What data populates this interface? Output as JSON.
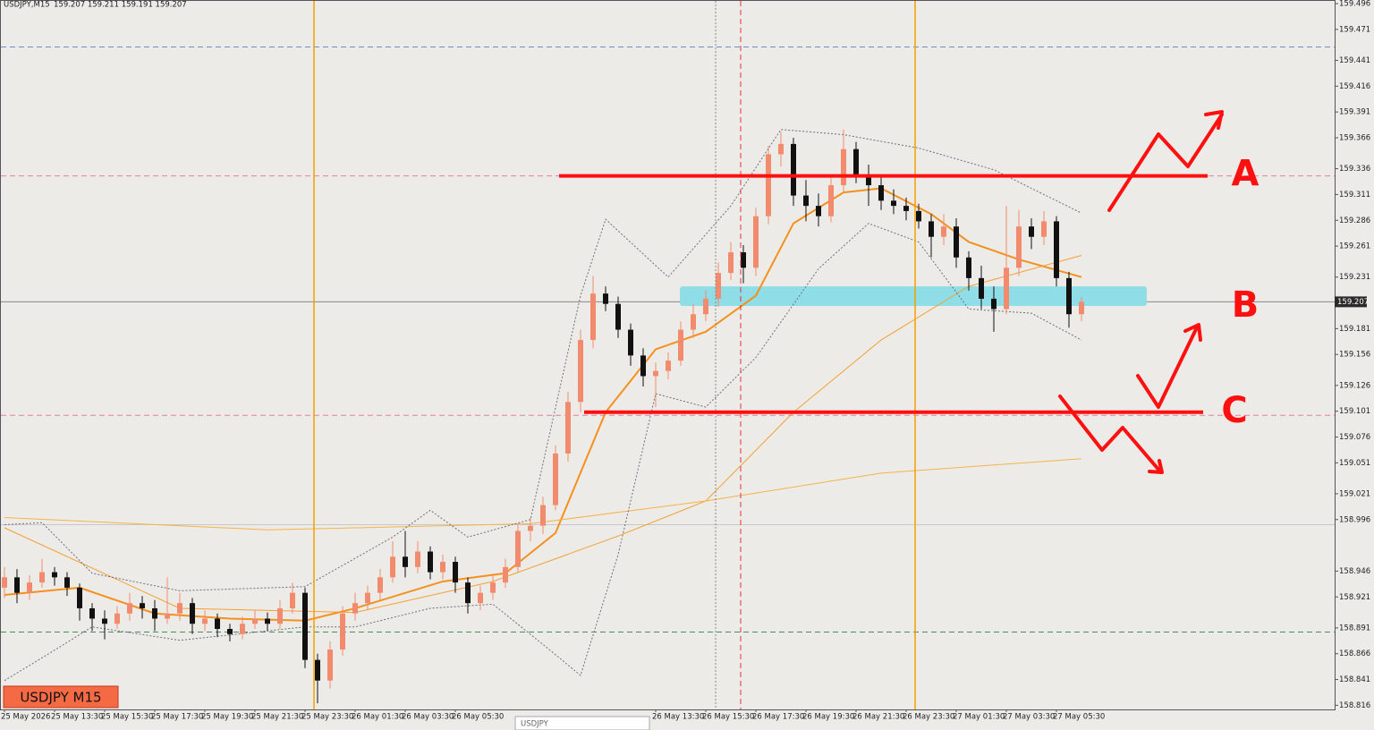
{
  "chart_data": {
    "type": "candlestick",
    "title": "USDJPY,M15",
    "header_values": "159.207 159.211 159.191 159.207",
    "symbol_label": "USDJPY M15",
    "tab_label": "USDJPY",
    "last_price": 159.207,
    "up_color": "#f28b6e",
    "down_color": "#111111",
    "grid": false,
    "ylim": [
      158.812,
      159.4995
    ],
    "yticks": [
      159.496,
      159.471,
      159.441,
      159.416,
      159.391,
      159.366,
      159.336,
      159.311,
      159.286,
      159.261,
      159.231,
      159.181,
      159.156,
      159.126,
      159.101,
      159.076,
      159.051,
      159.021,
      158.996,
      158.946,
      158.921,
      158.891,
      158.866,
      158.841,
      158.816
    ],
    "categories": [
      "25 May 2026",
      null,
      null,
      null,
      "25 May 13:30",
      null,
      null,
      null,
      "25 May 15:30",
      null,
      null,
      null,
      "25 May 17:30",
      null,
      null,
      null,
      "25 May 19:30",
      null,
      null,
      null,
      "25 May 21:30",
      null,
      null,
      null,
      "25 May 23:30",
      null,
      null,
      null,
      "26 May 01:30",
      null,
      null,
      null,
      "26 May 03:30",
      null,
      null,
      null,
      "26 May 05:30",
      null,
      null,
      null,
      null,
      null,
      null,
      null,
      null,
      null,
      null,
      null,
      null,
      null,
      null,
      null,
      "26 May 13:30",
      null,
      null,
      null,
      "26 May 15:30",
      null,
      null,
      null,
      "26 May 17:30",
      null,
      null,
      null,
      "26 May 19:30",
      null,
      null,
      null,
      "26 May 21:30",
      null,
      null,
      null,
      "26 May 23:30",
      null,
      null,
      null,
      "27 May 01:30",
      null,
      null,
      null,
      "27 May 03:30",
      null,
      null,
      null,
      "27 May 05:30",
      null,
      null
    ],
    "open": [
      158.93,
      158.94,
      158.925,
      158.935,
      158.945,
      158.94,
      158.93,
      158.91,
      158.9,
      158.895,
      158.905,
      158.915,
      158.91,
      158.9,
      158.905,
      158.915,
      158.895,
      158.9,
      158.89,
      158.885,
      158.895,
      158.9,
      158.895,
      158.91,
      158.925,
      158.86,
      158.84,
      158.87,
      158.905,
      158.915,
      158.925,
      158.94,
      158.96,
      158.95,
      158.965,
      158.945,
      158.955,
      158.935,
      158.915,
      158.925,
      158.935,
      158.95,
      158.985,
      158.99,
      159.01,
      159.06,
      159.11,
      159.17,
      159.215,
      159.205,
      159.18,
      159.155,
      159.135,
      159.14,
      159.15,
      159.18,
      159.195,
      159.21,
      159.235,
      159.255,
      159.24,
      159.29,
      159.35,
      159.36,
      159.31,
      159.3,
      159.29,
      159.32,
      159.355,
      159.33,
      159.32,
      159.305,
      159.3,
      159.295,
      159.285,
      159.27,
      159.28,
      159.25,
      159.23,
      159.21,
      159.2,
      159.24,
      159.28,
      159.27,
      159.285,
      159.23,
      159.195
    ],
    "high": [
      158.95,
      158.948,
      158.942,
      158.958,
      158.95,
      158.945,
      158.934,
      158.915,
      158.908,
      158.912,
      158.925,
      158.922,
      158.918,
      158.94,
      158.925,
      158.92,
      158.908,
      158.905,
      158.895,
      158.902,
      158.908,
      158.906,
      158.918,
      158.935,
      158.93,
      158.866,
      158.878,
      158.912,
      158.925,
      158.932,
      158.948,
      158.975,
      158.985,
      158.975,
      158.97,
      158.962,
      158.96,
      158.94,
      158.932,
      158.942,
      158.958,
      158.992,
      158.998,
      159.018,
      159.068,
      159.12,
      159.18,
      159.232,
      159.222,
      159.212,
      159.186,
      159.162,
      159.148,
      159.158,
      159.188,
      159.205,
      159.218,
      159.245,
      159.265,
      159.262,
      159.298,
      159.358,
      159.372,
      159.366,
      159.325,
      159.312,
      159.33,
      159.374,
      159.362,
      159.34,
      159.328,
      159.316,
      159.308,
      159.302,
      159.292,
      159.292,
      159.288,
      159.256,
      159.242,
      159.222,
      159.3,
      159.296,
      159.288,
      159.295,
      159.29,
      159.236,
      159.212
    ],
    "low": [
      158.92,
      158.915,
      158.918,
      158.93,
      158.932,
      158.922,
      158.898,
      158.888,
      158.88,
      158.89,
      158.898,
      158.9,
      158.888,
      158.895,
      158.898,
      158.885,
      158.888,
      158.882,
      158.878,
      158.88,
      158.89,
      158.888,
      158.89,
      158.905,
      158.852,
      158.818,
      158.832,
      158.864,
      158.898,
      158.908,
      158.918,
      158.935,
      158.94,
      158.944,
      158.938,
      158.938,
      158.925,
      158.905,
      158.908,
      158.918,
      158.93,
      158.945,
      158.975,
      158.982,
      159.005,
      159.052,
      159.1,
      159.162,
      159.198,
      159.172,
      159.145,
      159.125,
      159.105,
      159.132,
      159.145,
      159.172,
      159.188,
      159.202,
      159.228,
      159.225,
      159.232,
      159.282,
      159.338,
      159.3,
      159.285,
      159.28,
      159.284,
      159.314,
      159.322,
      159.3,
      159.296,
      159.292,
      159.286,
      159.278,
      159.25,
      159.262,
      159.24,
      159.218,
      159.2,
      159.178,
      159.195,
      159.232,
      159.258,
      159.262,
      159.222,
      159.182,
      159.188
    ],
    "close": [
      158.94,
      158.925,
      158.935,
      158.945,
      158.94,
      158.93,
      158.91,
      158.9,
      158.895,
      158.905,
      158.915,
      158.91,
      158.9,
      158.905,
      158.915,
      158.895,
      158.9,
      158.89,
      158.885,
      158.895,
      158.9,
      158.895,
      158.91,
      158.925,
      158.86,
      158.84,
      158.87,
      158.905,
      158.915,
      158.925,
      158.94,
      158.96,
      158.95,
      158.965,
      158.945,
      158.955,
      158.935,
      158.915,
      158.925,
      158.935,
      158.95,
      158.985,
      158.99,
      159.01,
      159.06,
      159.11,
      159.17,
      159.215,
      159.205,
      159.18,
      159.155,
      159.135,
      159.14,
      159.15,
      159.18,
      159.195,
      159.21,
      159.235,
      159.255,
      159.24,
      159.29,
      159.35,
      159.36,
      159.31,
      159.3,
      159.29,
      159.32,
      159.355,
      159.33,
      159.32,
      159.305,
      159.3,
      159.295,
      159.285,
      159.27,
      159.28,
      159.25,
      159.23,
      159.21,
      159.2,
      159.24,
      159.28,
      159.27,
      159.285,
      159.23,
      159.195,
      159.207
    ],
    "indicators": [
      {
        "color": "#f5901e",
        "width": 2,
        "dash": false,
        "x": [
          0,
          6,
          12,
          18,
          24,
          28,
          35,
          40,
          44,
          48,
          52,
          56,
          60,
          63,
          67,
          70,
          74,
          77,
          81,
          86
        ],
        "values": [
          158.923,
          158.93,
          158.905,
          158.9,
          158.898,
          158.91,
          158.936,
          158.944,
          158.983,
          159.1,
          159.161,
          159.178,
          159.213,
          159.283,
          159.313,
          159.317,
          159.292,
          159.265,
          159.248,
          159.231
        ]
      },
      {
        "color": "#f5a030",
        "width": 1,
        "dash": false,
        "x": [
          0,
          14,
          28,
          39,
          49,
          56,
          63,
          70,
          77,
          86
        ],
        "values": [
          158.988,
          158.91,
          158.906,
          158.936,
          158.98,
          159.014,
          159.1,
          159.17,
          159.222,
          159.252
        ]
      },
      {
        "color": "#f7b24a",
        "width": 1,
        "dash": false,
        "x": [
          0,
          21,
          42,
          56,
          70,
          86
        ],
        "values": [
          158.998,
          158.986,
          158.992,
          159.014,
          159.041,
          159.055
        ]
      },
      {
        "color": "#6e6e80",
        "width": 1,
        "dash": true,
        "x": [
          0,
          3,
          7,
          14,
          24,
          31,
          34,
          37,
          42,
          46,
          48,
          53,
          58,
          62,
          67,
          73,
          79,
          86
        ],
        "values": [
          158.991,
          158.993,
          158.944,
          158.927,
          158.931,
          158.979,
          159.005,
          158.979,
          158.996,
          159.213,
          159.287,
          159.231,
          159.3,
          159.374,
          159.369,
          159.356,
          159.335,
          159.293
        ]
      },
      {
        "color": "#6e6e80",
        "width": 1,
        "dash": true,
        "x": [
          0,
          3,
          7,
          14,
          24,
          28,
          34,
          39,
          43,
          46,
          49,
          52,
          56,
          60,
          65,
          69,
          73,
          77,
          82,
          86
        ],
        "values": [
          158.84,
          158.862,
          158.892,
          158.879,
          158.892,
          158.892,
          158.91,
          158.914,
          158.875,
          158.845,
          158.962,
          159.118,
          159.105,
          159.153,
          159.239,
          159.283,
          159.265,
          159.2,
          159.196,
          159.17
        ]
      }
    ],
    "hlines": [
      {
        "value": 159.454,
        "color": "#6b8fc0",
        "dash": true
      },
      {
        "value": 159.329,
        "color": "#e87ca0",
        "dash": true
      },
      {
        "value": 159.097,
        "color": "#e87ca0",
        "dash": true
      },
      {
        "value": 158.991,
        "color": "#c8c8c8",
        "dash": false
      },
      {
        "value": 158.887,
        "color": "#3f8f5f",
        "dash": true
      }
    ],
    "zone": {
      "low": 159.203,
      "high": 159.222,
      "color": "#8fdde6"
    },
    "levels": [
      {
        "value": 159.329,
        "label": "A"
      },
      {
        "value": 159.1,
        "label": "C"
      }
    ],
    "zone_label": "B"
  }
}
